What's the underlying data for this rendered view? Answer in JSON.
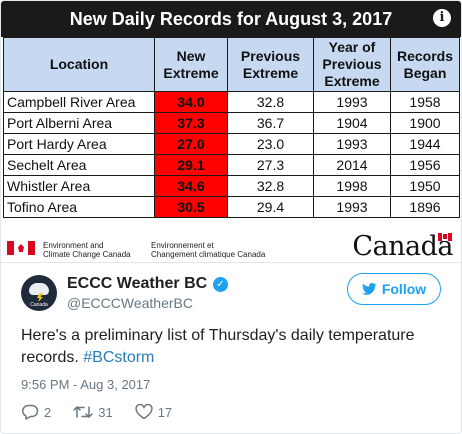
{
  "media": {
    "title": "New Daily Records for August 3, 2017",
    "info_glyph": "i",
    "columns": {
      "location": "Location",
      "new_extreme_1": "New",
      "new_extreme_2": "Extreme",
      "previous_extreme_1": "Previous",
      "previous_extreme_2": "Extreme",
      "year_1": "Year of",
      "year_2": "Previous",
      "year_3": "Extreme",
      "began_1": "Records",
      "began_2": "Began"
    },
    "rows": [
      {
        "location": "Campbell River Area",
        "new_extreme": "34.0",
        "previous_extreme": "32.8",
        "year": "1993",
        "began": "1958"
      },
      {
        "location": "Port Alberni Area",
        "new_extreme": "37.3",
        "previous_extreme": "36.7",
        "year": "1904",
        "began": "1900"
      },
      {
        "location": "Port Hardy Area",
        "new_extreme": "27.0",
        "previous_extreme": "23.0",
        "year": "1993",
        "began": "1944"
      },
      {
        "location": "Sechelt Area",
        "new_extreme": "29.1",
        "previous_extreme": "27.3",
        "year": "2014",
        "began": "1956"
      },
      {
        "location": "Whistler Area",
        "new_extreme": "34.6",
        "previous_extreme": "32.8",
        "year": "1998",
        "began": "1950"
      },
      {
        "location": "Tofino Area",
        "new_extreme": "30.5",
        "previous_extreme": "29.4",
        "year": "1993",
        "began": "1896"
      }
    ],
    "gov_en_1": "Environment and",
    "gov_en_2": "Climate Change Canada",
    "gov_fr_1": "Environnement et",
    "gov_fr_2": "Changement climatique Canada",
    "wordmark": "Canada"
  },
  "tweet": {
    "author_name": "ECCC Weather BC",
    "author_handle": "@ECCCWeatherBC",
    "avatar_label": "Canada",
    "follow_label": "Follow",
    "text_before": "Here's a preliminary list of Thursday's daily temperature records. ",
    "hashtag": "#BCstorm",
    "timestamp": "9:56 PM - Aug 3, 2017",
    "replies": "2",
    "retweets": "31",
    "likes": "17"
  },
  "colors": {
    "accent": "#1da1f2",
    "hashtag": "#2b7bb9",
    "header_bar": "#1a1a1a",
    "table_header": "#c6d9f1",
    "record_cell": "#ff0000"
  },
  "icons": {
    "info": "info-icon",
    "verified": "verified-icon",
    "follow": "twitter-bird-icon",
    "reply": "reply-icon",
    "retweet": "retweet-icon",
    "like": "heart-icon"
  }
}
